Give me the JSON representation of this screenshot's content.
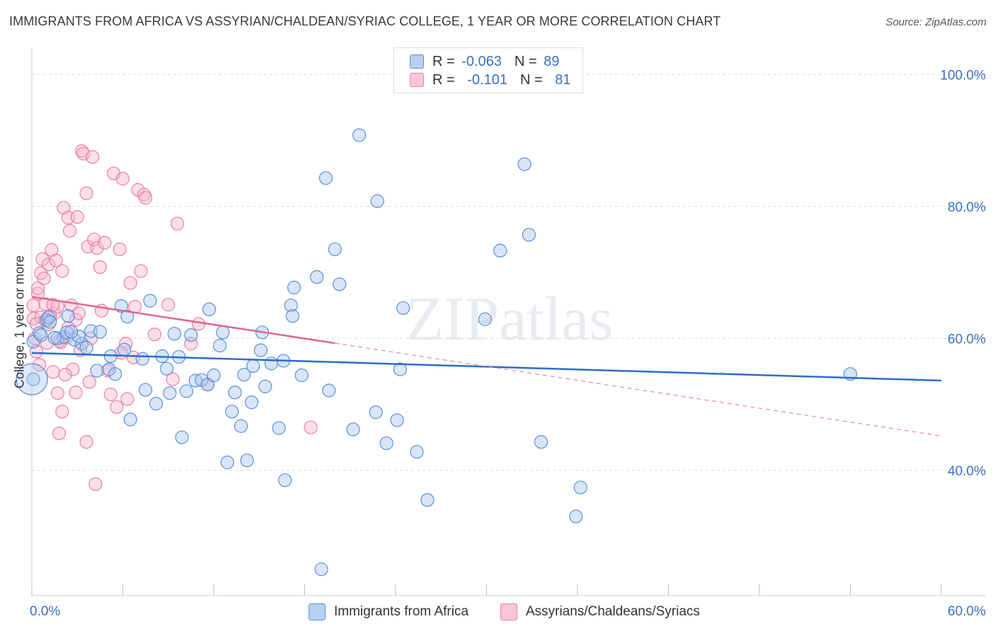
{
  "title": "IMMIGRANTS FROM AFRICA VS ASSYRIAN/CHALDEAN/SYRIAC COLLEGE, 1 YEAR OR MORE CORRELATION CHART",
  "source": "Source: ZipAtlas.com",
  "watermark": "ZIPatlas",
  "legend_stats": [
    {
      "r_label": "R =",
      "r_value": "-0.063",
      "n_label": "N =",
      "n_value": "89"
    },
    {
      "r_label": "R =",
      "r_value": "-0.101",
      "n_label": "N =",
      "n_value": "81"
    }
  ],
  "chart_data": {
    "type": "scatter",
    "title": "IMMIGRANTS FROM AFRICA VS ASSYRIAN/CHALDEAN/SYRIAC COLLEGE, 1 YEAR OR MORE CORRELATION CHART",
    "xlabel": "",
    "ylabel": "College, 1 year or more",
    "xlim": [
      0,
      60
    ],
    "ylim": [
      21,
      104
    ],
    "x_tick_labels": [
      "0.0%",
      "60.0%"
    ],
    "y_tick_labels": [
      "40.0%",
      "60.0%",
      "80.0%",
      "100.0%"
    ],
    "y_ticks": [
      40,
      60,
      80,
      100
    ],
    "grid": true,
    "legend_position": "bottom",
    "series": [
      {
        "name": "Immigrants from Africa",
        "color": "#5b8fd6",
        "fill": "#a9c7ef",
        "trend": {
          "x": [
            0,
            60
          ],
          "y": [
            57.8,
            53.6
          ],
          "style": "solid"
        },
        "points": [
          [
            0.1,
            53.8
          ],
          [
            0.1,
            59.5
          ],
          [
            0.5,
            60.8
          ],
          [
            1.0,
            62.8
          ],
          [
            1.1,
            63.2
          ],
          [
            1.2,
            62.5
          ],
          [
            1.7,
            60.0
          ],
          [
            2.1,
            60.2
          ],
          [
            2.3,
            60.9
          ],
          [
            2.4,
            63.4
          ],
          [
            2.8,
            59.8
          ],
          [
            3.3,
            59.2
          ],
          [
            3.6,
            58.6
          ],
          [
            3.9,
            61.1
          ],
          [
            4.3,
            55.1
          ],
          [
            4.5,
            61.0
          ],
          [
            5.1,
            55.3
          ],
          [
            5.2,
            57.3
          ],
          [
            5.5,
            54.6
          ],
          [
            5.9,
            64.9
          ],
          [
            6.1,
            58.3
          ],
          [
            6.3,
            63.3
          ],
          [
            6.5,
            47.7
          ],
          [
            7.3,
            56.9
          ],
          [
            7.5,
            52.2
          ],
          [
            7.8,
            65.7
          ],
          [
            8.2,
            50.1
          ],
          [
            8.6,
            57.3
          ],
          [
            8.9,
            55.4
          ],
          [
            9.1,
            51.7
          ],
          [
            9.4,
            60.7
          ],
          [
            9.7,
            57.2
          ],
          [
            9.9,
            45.0
          ],
          [
            10.2,
            52.0
          ],
          [
            10.5,
            60.5
          ],
          [
            10.8,
            53.6
          ],
          [
            11.2,
            53.7
          ],
          [
            11.6,
            53.0
          ],
          [
            11.7,
            64.4
          ],
          [
            12.0,
            54.4
          ],
          [
            12.4,
            58.9
          ],
          [
            12.6,
            60.9
          ],
          [
            12.9,
            41.2
          ],
          [
            13.2,
            48.9
          ],
          [
            13.4,
            51.8
          ],
          [
            13.8,
            46.7
          ],
          [
            14.0,
            54.5
          ],
          [
            14.2,
            41.5
          ],
          [
            14.5,
            50.3
          ],
          [
            14.6,
            55.8
          ],
          [
            15.1,
            58.2
          ],
          [
            15.2,
            60.9
          ],
          [
            15.4,
            52.7
          ],
          [
            15.8,
            56.2
          ],
          [
            16.3,
            46.4
          ],
          [
            16.6,
            56.6
          ],
          [
            16.7,
            38.5
          ],
          [
            17.1,
            65.0
          ],
          [
            17.2,
            63.4
          ],
          [
            17.3,
            67.7
          ],
          [
            17.8,
            54.4
          ],
          [
            18.8,
            69.3
          ],
          [
            19.1,
            25.0
          ],
          [
            19.4,
            84.3
          ],
          [
            19.6,
            52.1
          ],
          [
            20.0,
            73.5
          ],
          [
            20.3,
            68.2
          ],
          [
            21.2,
            46.2
          ],
          [
            21.6,
            90.8
          ],
          [
            22.7,
            48.8
          ],
          [
            22.8,
            80.8
          ],
          [
            23.4,
            44.1
          ],
          [
            24.1,
            47.6
          ],
          [
            24.3,
            55.3
          ],
          [
            24.5,
            64.6
          ],
          [
            25.4,
            42.8
          ],
          [
            26.1,
            35.5
          ],
          [
            29.9,
            62.9
          ],
          [
            30.9,
            73.3
          ],
          [
            32.5,
            86.4
          ],
          [
            32.8,
            75.7
          ],
          [
            33.6,
            44.3
          ],
          [
            36.2,
            37.4
          ],
          [
            35.9,
            33.0
          ],
          [
            54.0,
            54.6
          ],
          [
            0.6,
            60.5
          ],
          [
            1.5,
            60.1
          ],
          [
            3.1,
            60.3
          ],
          [
            2.6,
            61.0
          ]
        ]
      },
      {
        "name": "Assyrians/Chaldeans/Syriacs",
        "color": "#e87fa2",
        "fill": "#f7b9cc",
        "trend": {
          "x": [
            0,
            60
          ],
          "y": [
            66.3,
            45.2
          ],
          "style": "solid-then-dashed",
          "solid_until_x": 20
        },
        "points": [
          [
            0.1,
            63.0
          ],
          [
            0.1,
            65.0
          ],
          [
            0.2,
            60.0
          ],
          [
            0.3,
            58.0
          ],
          [
            0.4,
            66.8
          ],
          [
            0.4,
            67.6
          ],
          [
            0.5,
            56.0
          ],
          [
            0.6,
            63.2
          ],
          [
            0.6,
            69.9
          ],
          [
            0.7,
            72.0
          ],
          [
            0.8,
            69.1
          ],
          [
            0.9,
            65.2
          ],
          [
            1.0,
            59.3
          ],
          [
            1.1,
            62.1
          ],
          [
            1.1,
            71.2
          ],
          [
            1.3,
            73.4
          ],
          [
            1.4,
            54.9
          ],
          [
            1.5,
            63.8
          ],
          [
            1.6,
            71.8
          ],
          [
            1.7,
            64.8
          ],
          [
            1.7,
            51.7
          ],
          [
            1.8,
            45.6
          ],
          [
            1.9,
            59.4
          ],
          [
            2.0,
            48.9
          ],
          [
            2.0,
            70.2
          ],
          [
            2.1,
            79.8
          ],
          [
            2.3,
            60.1
          ],
          [
            2.4,
            78.3
          ],
          [
            2.5,
            76.3
          ],
          [
            2.6,
            65.0
          ],
          [
            2.7,
            55.3
          ],
          [
            2.9,
            62.8
          ],
          [
            2.9,
            51.8
          ],
          [
            3.0,
            78.4
          ],
          [
            3.2,
            58.2
          ],
          [
            3.3,
            88.4
          ],
          [
            3.4,
            88.0
          ],
          [
            3.6,
            82.0
          ],
          [
            3.6,
            44.3
          ],
          [
            3.7,
            73.9
          ],
          [
            3.8,
            53.4
          ],
          [
            3.9,
            60.0
          ],
          [
            4.0,
            87.5
          ],
          [
            4.1,
            75.0
          ],
          [
            4.2,
            37.9
          ],
          [
            4.3,
            73.7
          ],
          [
            4.5,
            70.8
          ],
          [
            4.8,
            74.5
          ],
          [
            5.0,
            55.1
          ],
          [
            5.2,
            51.5
          ],
          [
            5.4,
            85.0
          ],
          [
            5.6,
            49.6
          ],
          [
            5.8,
            73.5
          ],
          [
            6.0,
            84.2
          ],
          [
            6.2,
            59.2
          ],
          [
            6.3,
            50.8
          ],
          [
            6.5,
            68.4
          ],
          [
            6.7,
            57.1
          ],
          [
            7.0,
            82.5
          ],
          [
            7.2,
            70.2
          ],
          [
            7.4,
            81.8
          ],
          [
            7.5,
            81.3
          ],
          [
            8.1,
            60.6
          ],
          [
            9.0,
            65.1
          ],
          [
            9.3,
            53.8
          ],
          [
            9.6,
            77.4
          ],
          [
            10.5,
            59.2
          ],
          [
            11.0,
            62.2
          ],
          [
            11.6,
            53.0
          ],
          [
            18.4,
            46.5
          ],
          [
            0.3,
            62.2
          ],
          [
            1.2,
            63.4
          ],
          [
            1.8,
            59.6
          ],
          [
            2.2,
            54.5
          ],
          [
            0.9,
            62.7
          ],
          [
            4.6,
            64.2
          ],
          [
            3.1,
            63.8
          ],
          [
            5.9,
            57.8
          ],
          [
            6.8,
            64.8
          ],
          [
            2.4,
            61.6
          ],
          [
            1.4,
            65.1
          ]
        ]
      }
    ]
  }
}
